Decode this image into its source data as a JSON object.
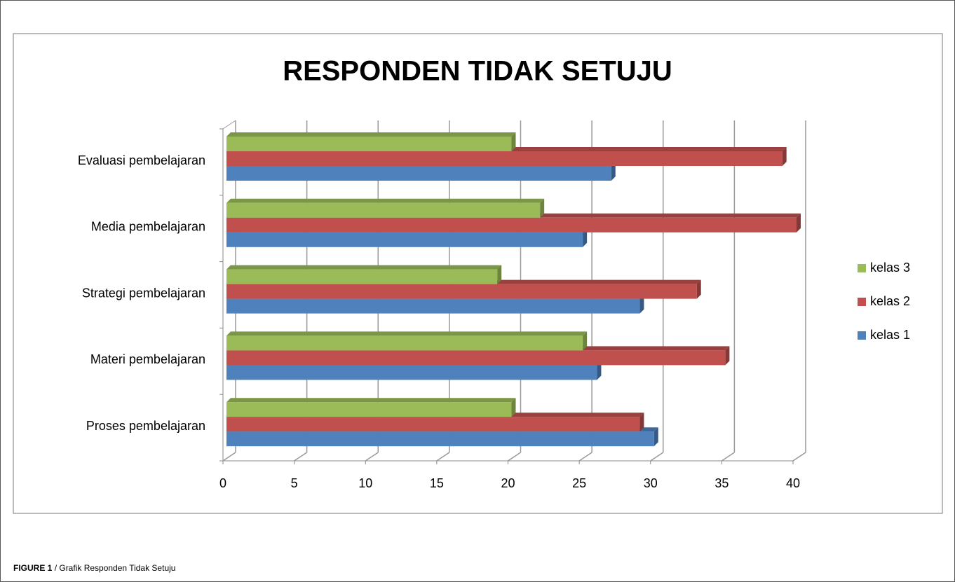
{
  "chart_data": {
    "type": "bar3d_horizontal",
    "title": "RESPONDEN TIDAK SETUJU",
    "categories": [
      "Proses pembelajaran",
      "Materi pembelajaran",
      "Strategi pembelajaran",
      "Media pembelajaran",
      "Evaluasi pembelajaran"
    ],
    "series": [
      {
        "name": "kelas 1",
        "color": "#4f81bd",
        "values": [
          30,
          26,
          29,
          25,
          27
        ]
      },
      {
        "name": "kelas 2",
        "color": "#c0504d",
        "values": [
          29,
          35,
          33,
          40,
          39
        ]
      },
      {
        "name": "kelas 3",
        "color": "#9bbb59",
        "values": [
          20,
          25,
          19,
          22,
          20
        ]
      }
    ],
    "xlim": [
      0,
      40
    ],
    "xticks": [
      0,
      5,
      10,
      15,
      20,
      25,
      30,
      35,
      40
    ],
    "grid": true,
    "legend": "right"
  },
  "caption": {
    "label": "FIGURE 1",
    "text": "/ Grafik Responden Tidak Setuju"
  }
}
